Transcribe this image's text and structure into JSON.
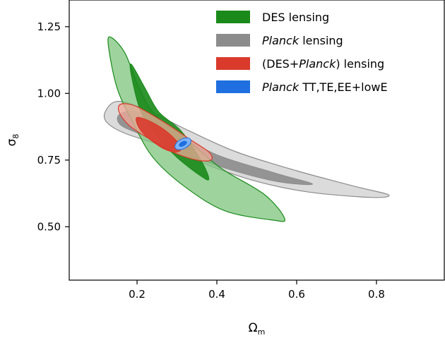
{
  "chart_data": {
    "type": "contour",
    "xlabel": "Ω",
    "xlabel_sub": "m",
    "ylabel": "σ",
    "ylabel_sub": "8",
    "xlim": [
      0.03,
      0.97
    ],
    "ylim": [
      0.3,
      1.35
    ],
    "x_ticks": [
      0.2,
      0.4,
      0.6,
      0.8
    ],
    "x_tick_labels": [
      "0.2",
      "0.4",
      "0.6",
      "0.8"
    ],
    "y_ticks": [
      0.5,
      0.75,
      1.0,
      1.25
    ],
    "y_tick_labels": [
      "0.50",
      "0.75",
      "1.00",
      "1.25"
    ],
    "grid": false,
    "legend_position": "top-right",
    "series": [
      {
        "name": "DES lensing",
        "name_parts": [
          {
            "text": "DES lensing",
            "italic": false
          }
        ],
        "color": "#1a8a1a",
        "outer_color": "#7dc47d",
        "contours": {
          "outer_95": [
            [
              0.135,
              1.21
            ],
            [
              0.17,
              1.15
            ],
            [
              0.205,
              1.02
            ],
            [
              0.245,
              0.92
            ],
            [
              0.33,
              0.82
            ],
            [
              0.41,
              0.72
            ],
            [
              0.52,
              0.62
            ],
            [
              0.57,
              0.53
            ],
            [
              0.54,
              0.525
            ],
            [
              0.42,
              0.56
            ],
            [
              0.32,
              0.65
            ],
            [
              0.24,
              0.76
            ],
            [
              0.19,
              0.89
            ],
            [
              0.15,
              1.02
            ],
            [
              0.128,
              1.18
            ]
          ],
          "inner_68": [
            [
              0.185,
              1.11
            ],
            [
              0.22,
              1.02
            ],
            [
              0.255,
              0.93
            ],
            [
              0.31,
              0.86
            ],
            [
              0.36,
              0.75
            ],
            [
              0.38,
              0.68
            ],
            [
              0.36,
              0.69
            ],
            [
              0.3,
              0.76
            ],
            [
              0.25,
              0.84
            ],
            [
              0.21,
              0.93
            ],
            [
              0.188,
              1.05
            ]
          ]
        }
      },
      {
        "name": "Planck lensing",
        "name_parts": [
          {
            "text": "Planck",
            "italic": true
          },
          {
            "text": " lensing",
            "italic": false
          }
        ],
        "color": "#8c8c8c",
        "outer_color": "#cfcfcf",
        "contours": {
          "outer_95": [
            [
              0.12,
              0.93
            ],
            [
              0.15,
              0.97
            ],
            [
              0.22,
              0.94
            ],
            [
              0.33,
              0.86
            ],
            [
              0.45,
              0.78
            ],
            [
              0.6,
              0.71
            ],
            [
              0.75,
              0.65
            ],
            [
              0.83,
              0.62
            ],
            [
              0.79,
              0.61
            ],
            [
              0.63,
              0.63
            ],
            [
              0.5,
              0.67
            ],
            [
              0.38,
              0.73
            ],
            [
              0.27,
              0.8
            ],
            [
              0.17,
              0.85
            ],
            [
              0.125,
              0.89
            ]
          ],
          "inner_68": [
            [
              0.155,
              0.92
            ],
            [
              0.2,
              0.93
            ],
            [
              0.29,
              0.86
            ],
            [
              0.4,
              0.77
            ],
            [
              0.55,
              0.7
            ],
            [
              0.64,
              0.66
            ],
            [
              0.55,
              0.67
            ],
            [
              0.42,
              0.72
            ],
            [
              0.31,
              0.78
            ],
            [
              0.22,
              0.84
            ],
            [
              0.16,
              0.88
            ]
          ]
        }
      },
      {
        "name": "(DES+Planck) lensing",
        "name_parts": [
          {
            "text": "(DES+",
            "italic": false
          },
          {
            "text": "Planck",
            "italic": true
          },
          {
            "text": ") lensing",
            "italic": false
          }
        ],
        "color": "#d93a2b",
        "outer_color": "#f2a899",
        "contours": {
          "outer_95": [
            [
              0.16,
              0.96
            ],
            [
              0.2,
              0.95
            ],
            [
              0.27,
              0.89
            ],
            [
              0.33,
              0.83
            ],
            [
              0.38,
              0.78
            ],
            [
              0.385,
              0.75
            ],
            [
              0.35,
              0.75
            ],
            [
              0.29,
              0.78
            ],
            [
              0.23,
              0.83
            ],
            [
              0.18,
              0.88
            ],
            [
              0.155,
              0.93
            ]
          ],
          "inner_68": [
            [
              0.2,
              0.91
            ],
            [
              0.24,
              0.89
            ],
            [
              0.28,
              0.85
            ],
            [
              0.31,
              0.8
            ],
            [
              0.3,
              0.78
            ],
            [
              0.27,
              0.79
            ],
            [
              0.23,
              0.83
            ],
            [
              0.205,
              0.87
            ]
          ]
        }
      },
      {
        "name": "Planck TT,TE,EE+lowE",
        "name_parts": [
          {
            "text": "Planck",
            "italic": true
          },
          {
            "text": " TT,TE,EE+lowE",
            "italic": false
          }
        ],
        "color": "#1f6fe0",
        "outer_color": "#7fb3f5",
        "contours": {
          "center": [
            0.315,
            0.811
          ],
          "outer_95_radius": [
            0.022,
            0.018
          ],
          "inner_68_radius": [
            0.011,
            0.009
          ],
          "tilt_deg": -28
        }
      }
    ]
  }
}
